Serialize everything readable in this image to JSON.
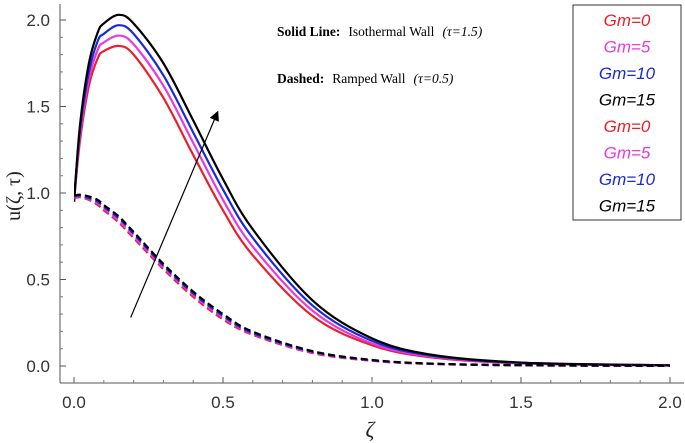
{
  "chart_data": {
    "type": "line",
    "xlabel": "ζ",
    "ylabel": "u(ζ, τ)",
    "xlim": [
      0,
      2
    ],
    "ylim": [
      -0.05,
      2.1
    ],
    "x_ticks": [
      "0.0",
      "0.5",
      "1.0",
      "1.5",
      "2.0"
    ],
    "y_ticks": [
      "0.0",
      "0.5",
      "1.0",
      "1.5",
      "2.0"
    ],
    "grid": false,
    "legend_position": "top-right",
    "annotations": {
      "solid_bold": "Solid Line:",
      "solid_text": "Isothermal Wall",
      "solid_tau": "(τ=1.5)",
      "dashed_bold": "Dashed:",
      "dashed_text": "Ramped Wall",
      "dashed_tau": "(τ=0.5)"
    },
    "x": [
      0.0,
      0.02,
      0.05,
      0.08,
      0.1,
      0.15,
      0.2,
      0.3,
      0.4,
      0.5,
      0.6,
      0.8,
      1.0,
      1.2,
      1.5,
      2.0
    ],
    "series": [
      {
        "name": "Gm=0",
        "style": "solid",
        "color": "#e8202a",
        "values": [
          0.95,
          1.3,
          1.62,
          1.78,
          1.82,
          1.85,
          1.8,
          1.55,
          1.22,
          0.9,
          0.64,
          0.29,
          0.12,
          0.05,
          0.015,
          0.003
        ]
      },
      {
        "name": "Gm=5",
        "style": "solid",
        "color": "#e838e0",
        "values": [
          0.95,
          1.33,
          1.66,
          1.83,
          1.87,
          1.91,
          1.86,
          1.62,
          1.29,
          0.96,
          0.69,
          0.32,
          0.13,
          0.055,
          0.016,
          0.003
        ]
      },
      {
        "name": "Gm=10",
        "style": "solid",
        "color": "#1a2ad8",
        "values": [
          0.95,
          1.36,
          1.7,
          1.88,
          1.92,
          1.97,
          1.92,
          1.68,
          1.35,
          1.02,
          0.74,
          0.35,
          0.145,
          0.06,
          0.018,
          0.004
        ]
      },
      {
        "name": "Gm=15",
        "style": "solid",
        "color": "#000000",
        "values": [
          0.95,
          1.39,
          1.75,
          1.93,
          1.98,
          2.03,
          1.98,
          1.75,
          1.42,
          1.08,
          0.79,
          0.38,
          0.16,
          0.065,
          0.02,
          0.004
        ]
      },
      {
        "name": "Gm=0",
        "style": "dashed",
        "color": "#e8202a",
        "values": [
          0.97,
          0.975,
          0.96,
          0.93,
          0.9,
          0.83,
          0.74,
          0.56,
          0.4,
          0.27,
          0.18,
          0.075,
          0.03,
          0.012,
          0.004,
          0.001
        ]
      },
      {
        "name": "Gm=5",
        "style": "dashed",
        "color": "#e838e0",
        "values": [
          0.975,
          0.98,
          0.965,
          0.94,
          0.91,
          0.84,
          0.75,
          0.57,
          0.41,
          0.28,
          0.185,
          0.078,
          0.031,
          0.012,
          0.004,
          0.001
        ]
      },
      {
        "name": "Gm=10",
        "style": "dashed",
        "color": "#1a2ad8",
        "values": [
          0.98,
          0.985,
          0.97,
          0.95,
          0.92,
          0.855,
          0.765,
          0.58,
          0.42,
          0.29,
          0.19,
          0.082,
          0.033,
          0.013,
          0.004,
          0.001
        ]
      },
      {
        "name": "Gm=15",
        "style": "dashed",
        "color": "#000000",
        "values": [
          0.985,
          0.99,
          0.98,
          0.96,
          0.93,
          0.865,
          0.775,
          0.59,
          0.43,
          0.3,
          0.198,
          0.086,
          0.035,
          0.014,
          0.005,
          0.001
        ]
      }
    ],
    "arrow": {
      "from": [
        0.19,
        0.28
      ],
      "to": [
        0.48,
        1.46
      ]
    }
  }
}
